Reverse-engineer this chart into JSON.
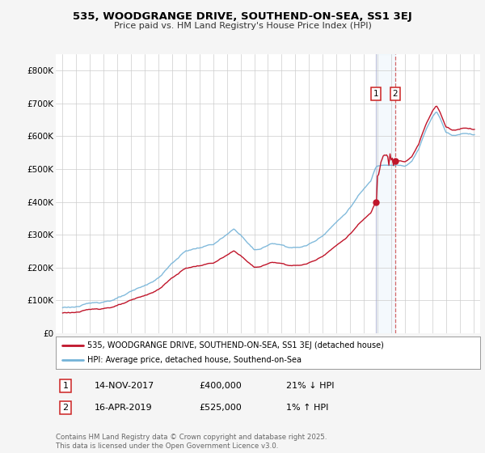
{
  "title": "535, WOODGRANGE DRIVE, SOUTHEND-ON-SEA, SS1 3EJ",
  "subtitle": "Price paid vs. HM Land Registry's House Price Index (HPI)",
  "legend_line1": "535, WOODGRANGE DRIVE, SOUTHEND-ON-SEA, SS1 3EJ (detached house)",
  "legend_line2": "HPI: Average price, detached house, Southend-on-Sea",
  "sale1_date": "14-NOV-2017",
  "sale1_price": 400000,
  "sale1_label": "21% ↓ HPI",
  "sale2_date": "16-APR-2019",
  "sale2_price": 525000,
  "sale2_label": "1% ↑ HPI",
  "footnote": "Contains HM Land Registry data © Crown copyright and database right 2025.\nThis data is licensed under the Open Government Licence v3.0.",
  "hpi_color": "#74b3d8",
  "price_color": "#c0152a",
  "background_color": "#f5f5f5",
  "plot_bg_color": "#ffffff",
  "grid_color": "#cccccc",
  "ylim": [
    0,
    850000
  ],
  "yticks": [
    0,
    100000,
    200000,
    300000,
    400000,
    500000,
    600000,
    700000,
    800000
  ],
  "ytick_labels": [
    "£0",
    "£100K",
    "£200K",
    "£300K",
    "£400K",
    "£500K",
    "£600K",
    "£700K",
    "£800K"
  ],
  "sale1_x": 2017.875,
  "sale2_x": 2019.29
}
